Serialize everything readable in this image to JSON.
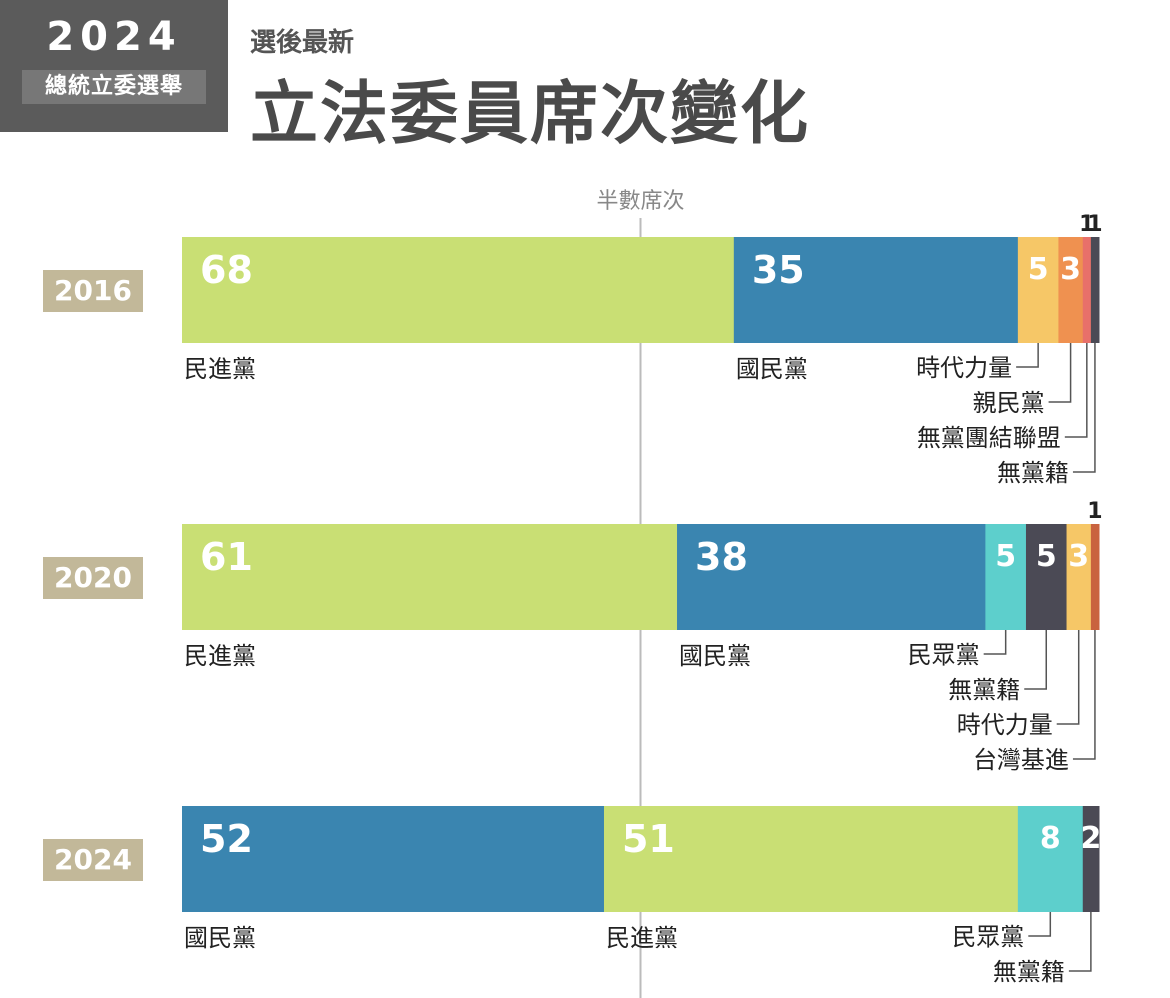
{
  "header": {
    "logo_year": "2024",
    "logo_subtitle": "總統立委選舉",
    "subtitle": "選後最新",
    "title": "立法委員席次變化"
  },
  "colors": {
    "民進黨": "#c9df74",
    "國民黨": "#3a85b0",
    "時代力量": "#f6c767",
    "親民黨": "#ef9150",
    "無黨團結聯盟": "#e8706a",
    "無黨籍": "#4b4a55",
    "民眾黨": "#5dcfcc",
    "台灣基進": "#c9633f",
    "year_badge": "#c2b899",
    "midline": "#bbbbbb"
  },
  "chart_data": {
    "type": "bar",
    "orientation": "horizontal-stacked",
    "total_seats": 113,
    "midline_label": "半數席次",
    "midline_value": 56.5,
    "bars": [
      {
        "year": "2016",
        "segments": [
          {
            "party": "民進黨",
            "value": 68,
            "value_label": "68",
            "label_below": "民進黨"
          },
          {
            "party": "國民黨",
            "value": 35,
            "value_label": "35",
            "label_below": "國民黨"
          },
          {
            "party": "時代力量",
            "value": 5,
            "value_label": "5",
            "callout": "時代力量"
          },
          {
            "party": "親民黨",
            "value": 3,
            "value_label": "3",
            "callout": "親民黨"
          },
          {
            "party": "無黨團結聯盟",
            "value": 1,
            "value_label": "1",
            "callout": "無黨團結聯盟",
            "label_above": true
          },
          {
            "party": "無黨籍",
            "value": 1,
            "value_label": "1",
            "callout": "無黨籍",
            "label_above": true
          }
        ]
      },
      {
        "year": "2020",
        "segments": [
          {
            "party": "民進黨",
            "value": 61,
            "value_label": "61",
            "label_below": "民進黨"
          },
          {
            "party": "國民黨",
            "value": 38,
            "value_label": "38",
            "label_below": "國民黨"
          },
          {
            "party": "民眾黨",
            "value": 5,
            "value_label": "5",
            "callout": "民眾黨"
          },
          {
            "party": "無黨籍",
            "value": 5,
            "value_label": "5",
            "callout": "無黨籍"
          },
          {
            "party": "時代力量",
            "value": 3,
            "value_label": "3",
            "callout": "時代力量"
          },
          {
            "party": "台灣基進",
            "value": 1,
            "value_label": "1",
            "callout": "台灣基進",
            "label_above": true
          }
        ]
      },
      {
        "year": "2024",
        "segments": [
          {
            "party": "國民黨",
            "value": 52,
            "value_label": "52",
            "label_below": "國民黨"
          },
          {
            "party": "民進黨",
            "value": 51,
            "value_label": "51",
            "label_below": "民進黨"
          },
          {
            "party": "民眾黨",
            "value": 8,
            "value_label": "8",
            "callout": "民眾黨"
          },
          {
            "party": "無黨籍",
            "value": 2,
            "value_label": "2",
            "callout": "無黨籍"
          }
        ]
      }
    ]
  }
}
